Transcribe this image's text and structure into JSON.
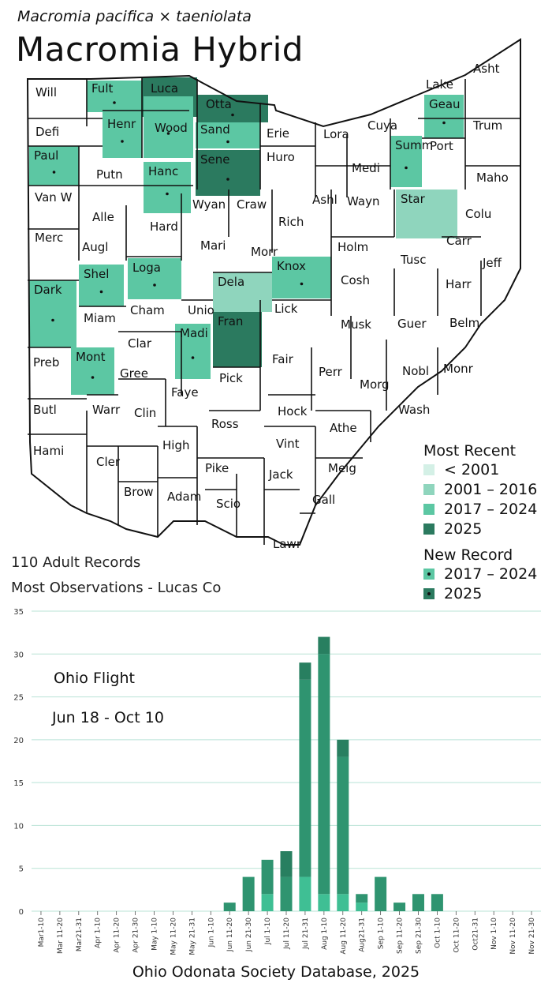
{
  "header": {
    "subtitle": "Macromia pacifica × taeniolata",
    "title": "Macromia Hybrid"
  },
  "stats": {
    "records": "110 Adult Records",
    "most_obs": "Most Observations - Lucas Co"
  },
  "legend": {
    "most_recent_title": "Most Recent",
    "most_recent": [
      {
        "label": "< 2001",
        "color": "#d4f0e6"
      },
      {
        "label": "2001 – 2016",
        "color": "#8fd5bd"
      },
      {
        "label": "2017 – 2024",
        "color": "#5cc7a3"
      },
      {
        "label": "2025",
        "color": "#2b7a5f"
      }
    ],
    "new_record_title": "New Record",
    "new_record": [
      {
        "label": "2017 – 2024",
        "color": "#5cc7a3"
      },
      {
        "label": "2025",
        "color": "#2b7a5f"
      }
    ]
  },
  "map": {
    "counties": [
      {
        "label": "Will"
      },
      {
        "label": "Fult"
      },
      {
        "label": "Luca"
      },
      {
        "label": "Otta"
      },
      {
        "label": "Lake"
      },
      {
        "label": "Asht"
      },
      {
        "label": "Defi"
      },
      {
        "label": "Henr"
      },
      {
        "label": "Wood"
      },
      {
        "label": "Sand"
      },
      {
        "label": "Erie"
      },
      {
        "label": "Lora"
      },
      {
        "label": "Cuya"
      },
      {
        "label": "Geau"
      },
      {
        "label": "Trum"
      },
      {
        "label": "Paul"
      },
      {
        "label": "Putn"
      },
      {
        "label": "Hanc"
      },
      {
        "label": "Sene"
      },
      {
        "label": "Huro"
      },
      {
        "label": "Medi"
      },
      {
        "label": "Summ"
      },
      {
        "label": "Port"
      },
      {
        "label": "Maho"
      },
      {
        "label": "Van W"
      },
      {
        "label": "Alle"
      },
      {
        "label": "Wyan"
      },
      {
        "label": "Craw"
      },
      {
        "label": "Rich"
      },
      {
        "label": "Ashl"
      },
      {
        "label": "Wayn"
      },
      {
        "label": "Star"
      },
      {
        "label": "Colu"
      },
      {
        "label": "Merc"
      },
      {
        "label": "Augl"
      },
      {
        "label": "Hard"
      },
      {
        "label": "Mari"
      },
      {
        "label": "Morr"
      },
      {
        "label": "Holm"
      },
      {
        "label": "Carr"
      },
      {
        "label": "Tusc"
      },
      {
        "label": "Jeff"
      },
      {
        "label": "Shel"
      },
      {
        "label": "Loga"
      },
      {
        "label": "Dela"
      },
      {
        "label": "Knox"
      },
      {
        "label": "Cosh"
      },
      {
        "label": "Harr"
      },
      {
        "label": "Dark"
      },
      {
        "label": "Miam"
      },
      {
        "label": "Cham"
      },
      {
        "label": "Unio"
      },
      {
        "label": "Lick"
      },
      {
        "label": "Musk"
      },
      {
        "label": "Guer"
      },
      {
        "label": "Belm"
      },
      {
        "label": "Clar"
      },
      {
        "label": "Fran"
      },
      {
        "label": "Preb"
      },
      {
        "label": "Mont"
      },
      {
        "label": "Gree"
      },
      {
        "label": "Madi"
      },
      {
        "label": "Fair"
      },
      {
        "label": "Perr"
      },
      {
        "label": "Nobl"
      },
      {
        "label": "Monr"
      },
      {
        "label": "Faye"
      },
      {
        "label": "Pick"
      },
      {
        "label": "Morg"
      },
      {
        "label": "Butl"
      },
      {
        "label": "Warr"
      },
      {
        "label": "Clin"
      },
      {
        "label": "Hock"
      },
      {
        "label": "Wash"
      },
      {
        "label": "Ross"
      },
      {
        "label": "Athe"
      },
      {
        "label": "Hami"
      },
      {
        "label": "High"
      },
      {
        "label": "Vint"
      },
      {
        "label": "Cler"
      },
      {
        "label": "Pike"
      },
      {
        "label": "Jack"
      },
      {
        "label": "Meig"
      },
      {
        "label": "Brow"
      },
      {
        "label": "Adam"
      },
      {
        "label": "Scio"
      },
      {
        "label": "Gall"
      },
      {
        "label": "Lawr"
      }
    ]
  },
  "flight": {
    "label": "Ohio Flight",
    "range": "Jun 18 - Oct 10"
  },
  "chart_data": {
    "type": "bar",
    "stacked": true,
    "categories": [
      "Mar1-10",
      "Mar 11-20",
      "Mar21-31",
      "Apr 1-10",
      "Apr 11-20",
      "Apr 21-30",
      "May 1-10",
      "May 11-20",
      "May 21-31",
      "Jun 1-10",
      "Jun 11-20",
      "Jun 21-30",
      "Jul 1-10",
      "Jul 11-20",
      "Jul 21-31",
      "Aug 1-10",
      "Aug 11-20",
      "Aug21-31",
      "Sep 1-10",
      "Sep 11-20",
      "Sep 21-30",
      "Oct 1-10",
      "Oct 11-20",
      "Oct21-31",
      "Nov 1-10",
      "Nov 11-20",
      "Nov 21-30"
    ],
    "series": [
      {
        "color": "#3fbf94",
        "values": [
          0,
          0,
          0,
          0,
          0,
          0,
          0,
          0,
          0,
          0,
          0,
          0,
          2,
          0,
          4,
          2,
          2,
          1,
          0,
          0,
          0,
          0,
          0,
          0,
          0,
          0,
          0
        ]
      },
      {
        "color": "#2f9470",
        "values": [
          0,
          0,
          0,
          0,
          0,
          0,
          0,
          0,
          0,
          0,
          1,
          4,
          4,
          4,
          23,
          28,
          16,
          1,
          4,
          1,
          2,
          2,
          0,
          0,
          0,
          0,
          0
        ]
      },
      {
        "color": "#287f60",
        "values": [
          0,
          0,
          0,
          0,
          0,
          0,
          0,
          0,
          0,
          0,
          0,
          0,
          0,
          3,
          2,
          2,
          2,
          0,
          0,
          0,
          0,
          0,
          0,
          0,
          0,
          0,
          0
        ]
      }
    ],
    "yticks": [
      0,
      5,
      10,
      15,
      20,
      25,
      30,
      35
    ],
    "ylim": [
      0,
      35
    ],
    "grid": true,
    "source": "Ohio Odonata Society Database, 2025"
  }
}
